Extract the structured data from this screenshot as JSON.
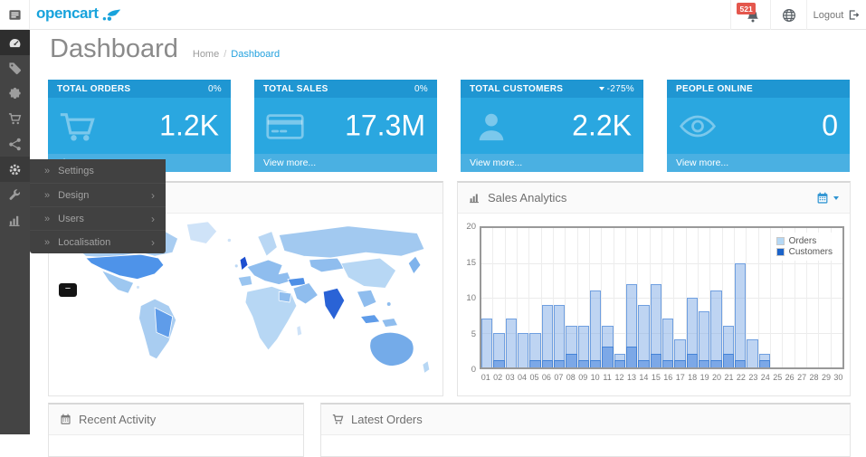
{
  "brand": {
    "logo_text": "opencart",
    "accent_color": "#23a1de",
    "logo_color": "#18a3dc"
  },
  "header": {
    "notifications_badge": "521",
    "logout_label": "Logout",
    "icons": [
      "menu-toggle-icon",
      "bell-icon",
      "globe-icon",
      "logout-icon"
    ]
  },
  "sidebar": {
    "items": [
      {
        "name": "dashboard",
        "icon": "dashboard-gauge-icon",
        "active": true
      },
      {
        "name": "catalog",
        "icon": "tag-icon"
      },
      {
        "name": "extensions",
        "icon": "puzzle-icon"
      },
      {
        "name": "sales",
        "icon": "cart-icon"
      },
      {
        "name": "marketing",
        "icon": "share-icon"
      },
      {
        "name": "system",
        "icon": "gear-icon",
        "open": true
      },
      {
        "name": "tools",
        "icon": "wrench-icon"
      },
      {
        "name": "reports",
        "icon": "bar-chart-icon"
      }
    ]
  },
  "submenu": {
    "items": [
      {
        "label": "Settings",
        "has_children": false
      },
      {
        "label": "Design",
        "has_children": true
      },
      {
        "label": "Users",
        "has_children": true
      },
      {
        "label": "Localisation",
        "has_children": true
      }
    ]
  },
  "page": {
    "title": "Dashboard",
    "breadcrumb": [
      {
        "label": "Home"
      },
      {
        "label": "Dashboard"
      }
    ]
  },
  "tiles": [
    {
      "title": "TOTAL ORDERS",
      "delta": "0%",
      "delta_caret": false,
      "value": "1.2K",
      "icon": "shopping-cart-icon",
      "footer": "View more..."
    },
    {
      "title": "TOTAL SALES",
      "delta": "0%",
      "delta_caret": false,
      "value": "17.3M",
      "icon": "credit-card-icon",
      "footer": "View more..."
    },
    {
      "title": "TOTAL CUSTOMERS",
      "delta": "-275%",
      "delta_caret": true,
      "value": "2.2K",
      "icon": "user-icon",
      "footer": "View more..."
    },
    {
      "title": "PEOPLE ONLINE",
      "delta": "",
      "delta_caret": false,
      "value": "0",
      "icon": "eye-icon",
      "footer": "View more..."
    }
  ],
  "panels": {
    "world_map": {
      "title": ""
    },
    "sales_analytics": {
      "title": "Sales Analytics",
      "icons": [
        "bar-chart-icon",
        "calendar-icon",
        "caret-down-icon"
      ]
    },
    "recent_activity": {
      "title": "Recent Activity",
      "icon": "calendar-icon"
    },
    "latest_orders": {
      "title": "Latest Orders",
      "icon": "cart-icon"
    }
  },
  "colors": {
    "tile_header": "#1f96d2",
    "tile_body": "#2aa7e0",
    "tile_footer": "#4ab0e2",
    "sidebar_bg": "#444444",
    "sidebar_active": "#2e2e2e",
    "submenu_bg": "#414141",
    "badge_red": "#e4574d",
    "link_blue": "#23a1de",
    "orders_bar_fill": "rgba(125,170,230,0.5)",
    "orders_bar_border": "#6f9fe0",
    "customers_bar_fill": "rgba(96,150,226,0.7)",
    "customers_bar_border": "#4583d6"
  },
  "chart_data": {
    "type": "bar",
    "title": "Sales Analytics",
    "categories": [
      "01",
      "02",
      "03",
      "04",
      "05",
      "06",
      "07",
      "08",
      "09",
      "10",
      "11",
      "12",
      "13",
      "14",
      "15",
      "16",
      "17",
      "18",
      "19",
      "20",
      "21",
      "22",
      "23",
      "24",
      "25",
      "26",
      "27",
      "28",
      "29",
      "30"
    ],
    "series": [
      {
        "name": "Orders",
        "color": "#b5d8f5",
        "values": [
          7,
          5,
          7,
          5,
          5,
          9,
          9,
          6,
          6,
          11,
          6,
          2,
          12,
          9,
          12,
          7,
          4,
          10,
          8,
          11,
          6,
          15,
          4,
          2,
          0,
          0,
          0,
          0,
          0,
          0
        ]
      },
      {
        "name": "Customers",
        "color": "#1b63c9",
        "values": [
          0,
          1,
          0,
          0,
          1,
          1,
          1,
          2,
          1,
          1,
          3,
          1,
          3,
          1,
          2,
          1,
          1,
          2,
          1,
          1,
          2,
          1,
          0,
          1,
          0,
          0,
          0,
          0,
          0,
          0
        ]
      }
    ],
    "xlabel": "",
    "ylabel": "",
    "ylim": [
      0,
      20
    ],
    "yticks": [
      0,
      5,
      10,
      15,
      20
    ],
    "grid": true,
    "legend_position": "top-right"
  }
}
